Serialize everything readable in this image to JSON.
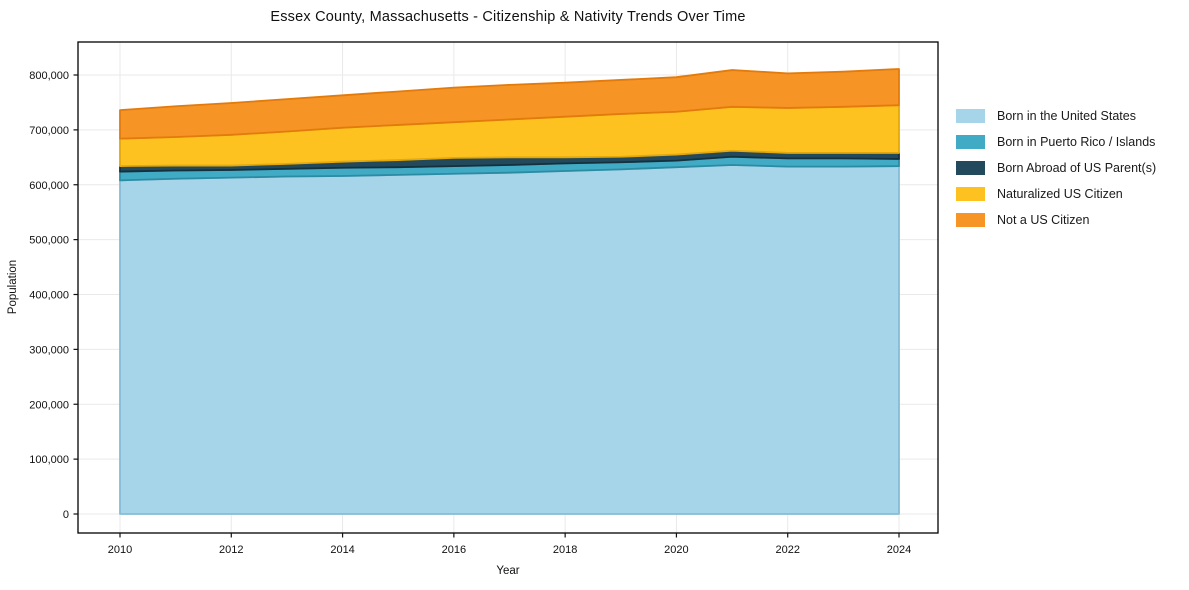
{
  "chart_data": {
    "type": "area",
    "stacked": true,
    "title": "Essex County, Massachusetts - Citizenship & Nativity Trends Over Time",
    "xlabel": "Year",
    "ylabel": "Population",
    "grid": true,
    "legend_position": "right",
    "x": [
      2010,
      2011,
      2012,
      2013,
      2014,
      2015,
      2016,
      2017,
      2018,
      2019,
      2020,
      2021,
      2022,
      2023,
      2024
    ],
    "xticks": [
      2010,
      2012,
      2014,
      2016,
      2018,
      2020,
      2022,
      2024
    ],
    "yticks": [
      0,
      100000,
      200000,
      300000,
      400000,
      500000,
      600000,
      700000,
      800000
    ],
    "ylim": [
      0,
      800000
    ],
    "series": [
      {
        "name": "Born in the United States",
        "color": "#a6d4e8",
        "edge_color": "#85bcd6",
        "values": [
          608000,
          611000,
          613000,
          615000,
          616000,
          618000,
          620000,
          622000,
          625000,
          628000,
          632000,
          636000,
          633000,
          633000,
          634000
        ]
      },
      {
        "name": "Born in Puerto Rico / Islands",
        "color": "#41aac4",
        "edge_color": "#2b8ba3",
        "values": [
          16000,
          15000,
          14000,
          14000,
          15000,
          14000,
          14000,
          14000,
          14000,
          13000,
          12000,
          15000,
          15000,
          15000,
          13000
        ]
      },
      {
        "name": "Born Abroad of US Parent(s)",
        "color": "#234a5c",
        "edge_color": "#15303d",
        "values": [
          10000,
          9000,
          8000,
          9000,
          11000,
          13000,
          15000,
          14000,
          11000,
          10000,
          11000,
          11000,
          10000,
          10000,
          11000
        ]
      },
      {
        "name": "Naturalized US Citizen",
        "color": "#fdc220",
        "edge_color": "#e2a80d",
        "values": [
          50000,
          52000,
          56000,
          59000,
          62000,
          64000,
          65000,
          69000,
          74000,
          78000,
          78000,
          80000,
          82000,
          84000,
          87000
        ]
      },
      {
        "name": "Not a US Citizen",
        "color": "#f79426",
        "edge_color": "#e27b0c",
        "values": [
          52000,
          56000,
          58000,
          59000,
          59000,
          61000,
          63000,
          63000,
          62000,
          62000,
          63000,
          67000,
          63000,
          64000,
          66000
        ]
      }
    ],
    "grid_color": "#e9e9e9",
    "spine_color": "#000000",
    "tick_color": "#111111"
  }
}
